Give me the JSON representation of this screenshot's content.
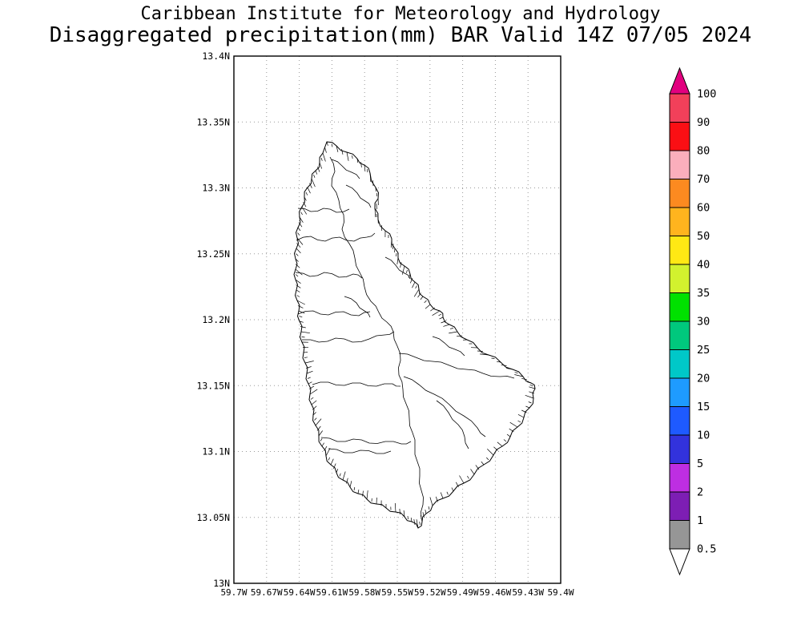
{
  "title": {
    "line1": "Caribbean Institute for Meteorology and Hydrology",
    "line2": "Disaggregated precipitation(mm) BAR Valid 14Z 07/05 2024"
  },
  "map": {
    "lat_ticks": [
      "13.4N",
      "13.35N",
      "13.3N",
      "13.25N",
      "13.2N",
      "13.15N",
      "13.1N",
      "13.05N",
      "13N"
    ],
    "lon_ticks": [
      "59.7W",
      "59.67W",
      "59.64W",
      "59.61W",
      "59.58W",
      "59.55W",
      "59.52W",
      "59.49W",
      "59.46W",
      "59.43W",
      "59.4W"
    ]
  },
  "colorbar": {
    "tick_labels": [
      "100",
      "90",
      "80",
      "70",
      "60",
      "50",
      "40",
      "35",
      "30",
      "25",
      "20",
      "15",
      "10",
      "5",
      "2",
      "1",
      "0.5"
    ],
    "band_colors_top_to_bottom": [
      "#f2405a",
      "#fa0f14",
      "#fbaebc",
      "#fc8a20",
      "#ffb41e",
      "#ffe814",
      "#d2f22e",
      "#00e100",
      "#00c87d",
      "#00c8c8",
      "#1e9bff",
      "#1e5aff",
      "#3232dc",
      "#be2ee2",
      "#7d1eb4",
      "#969696"
    ],
    "above_max_color": "#e2007f",
    "below_min_color": "#ffffff",
    "outline_color": "#000000"
  }
}
